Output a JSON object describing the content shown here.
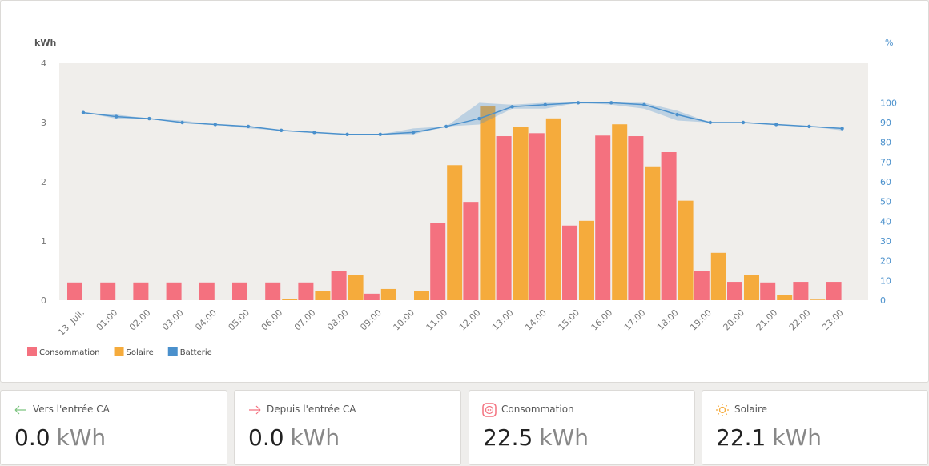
{
  "chart_data": {
    "type": "bar",
    "y_label": "kWh",
    "y2_label": "%",
    "categories": [
      "13. Juil.",
      "01:00",
      "02:00",
      "03:00",
      "04:00",
      "05:00",
      "06:00",
      "07:00",
      "08:00",
      "09:00",
      "10:00",
      "11:00",
      "12:00",
      "13:00",
      "14:00",
      "15:00",
      "16:00",
      "17:00",
      "18:00",
      "19:00",
      "20:00",
      "21:00",
      "22:00",
      "23:00"
    ],
    "series": [
      {
        "name": "Consommation",
        "color": "#f4717f",
        "values": [
          0.3,
          0.3,
          0.3,
          0.3,
          0.3,
          0.3,
          0.3,
          0.3,
          0.49,
          0.11,
          0,
          1.31,
          1.66,
          2.77,
          2.82,
          1.26,
          2.78,
          2.77,
          2.5,
          0.49,
          0.31,
          0.3,
          0.31,
          0.31
        ]
      },
      {
        "name": "Solaire",
        "color": "#f5ab3c",
        "values": [
          0,
          0,
          0,
          0,
          0,
          0,
          0.02,
          0.16,
          0.42,
          0.19,
          0.15,
          2.28,
          3.27,
          2.92,
          3.07,
          1.34,
          2.97,
          2.26,
          1.68,
          0.8,
          0.43,
          0.09,
          0.01,
          0
        ]
      },
      {
        "name": "Batterie",
        "color": "#4a90cc",
        "type": "line",
        "axis": "y2",
        "values": [
          95,
          93,
          92,
          90,
          89,
          88,
          86,
          85,
          84,
          84,
          85,
          88,
          92,
          98,
          99,
          100,
          100,
          99,
          94,
          90,
          90,
          89,
          88,
          87
        ],
        "low": [
          95,
          92,
          92,
          90,
          89,
          87,
          86,
          85,
          84,
          84,
          84,
          88,
          89,
          97,
          97,
          100,
          99,
          97,
          91,
          90,
          90,
          89,
          88,
          86
        ],
        "high": [
          95,
          94,
          92,
          91,
          89,
          88,
          86,
          85,
          84,
          84,
          87,
          88,
          100,
          99,
          100,
          100,
          100,
          100,
          96,
          90,
          90,
          89,
          88,
          87
        ]
      }
    ],
    "ylim": [
      0,
      4
    ],
    "yticks": [
      0,
      1,
      2,
      3,
      4
    ],
    "y2lim": [
      0,
      120
    ],
    "y2ticks": [
      0,
      10,
      20,
      30,
      40,
      50,
      60,
      70,
      80,
      90,
      100
    ],
    "grid": false
  },
  "cards": [
    {
      "title": "Vers l'entrée CA",
      "value": "0.0",
      "unit": "kWh"
    },
    {
      "title": "Depuis l'entrée CA",
      "value": "0.0",
      "unit": "kWh"
    },
    {
      "title": "Consommation",
      "value": "22.5",
      "unit": "kWh"
    },
    {
      "title": "Solaire",
      "value": "22.1",
      "unit": "kWh"
    }
  ]
}
